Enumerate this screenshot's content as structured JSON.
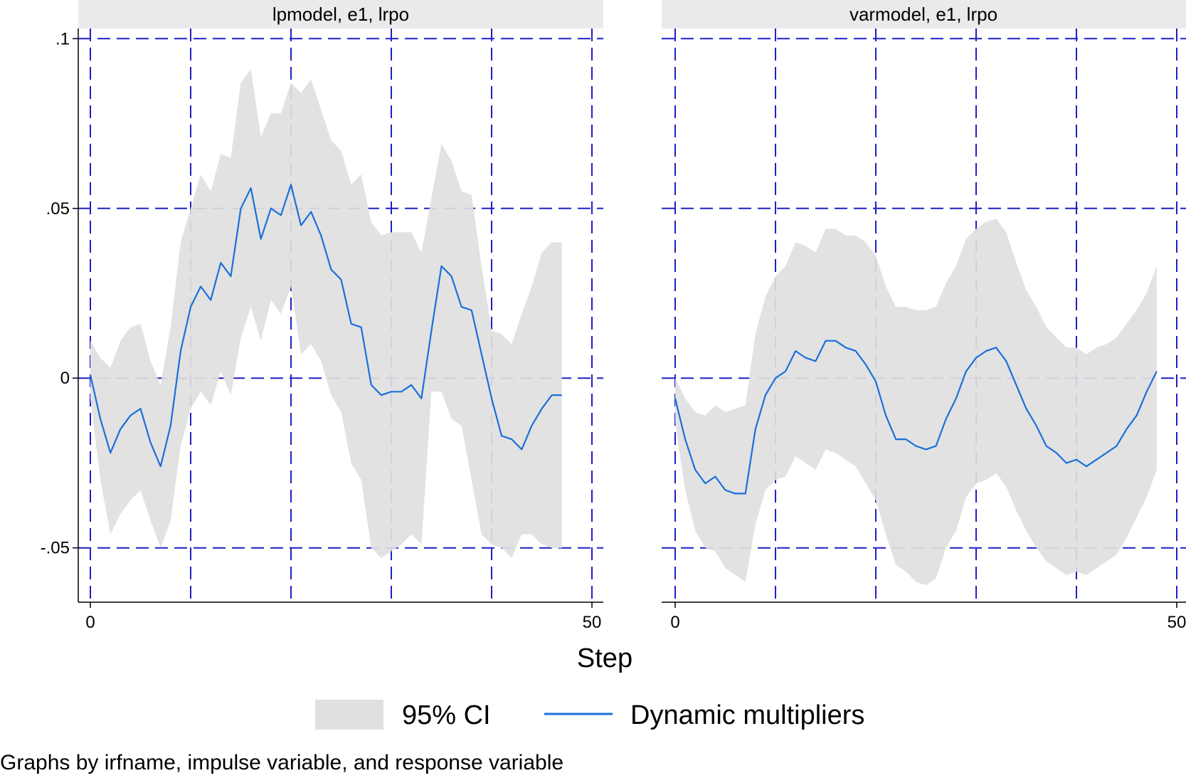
{
  "chart_data": [
    {
      "type": "line",
      "title": "lpmodel, e1, lrpo",
      "xlabel": "Step",
      "xlim": [
        0,
        50
      ],
      "ylim": [
        -0.066,
        0.103
      ],
      "xticks": [
        {
          "value": 0,
          "label": "0"
        },
        {
          "value": 50,
          "label": "50"
        }
      ],
      "yticks": [
        {
          "value": 0.1,
          "label": ".1"
        },
        {
          "value": 0.05,
          "label": ".05"
        },
        {
          "value": 0,
          "label": "0"
        },
        {
          "value": -0.05,
          "label": "-.05"
        }
      ],
      "grid_x": [
        0,
        10,
        20,
        30,
        40,
        50
      ],
      "grid_y": [
        -0.05,
        0,
        0.05,
        0.1
      ],
      "grid": true,
      "x": [
        0,
        1,
        2,
        3,
        4,
        5,
        6,
        7,
        8,
        9,
        10,
        11,
        12,
        13,
        14,
        15,
        16,
        17,
        18,
        19,
        20,
        21,
        22,
        23,
        24,
        25,
        26,
        27,
        28,
        29,
        30,
        31,
        32,
        33,
        34,
        35,
        36,
        37,
        38,
        39,
        40,
        41,
        42,
        43,
        44,
        45,
        46,
        47
      ],
      "series": [
        {
          "name": "95% CI",
          "kind": "band",
          "lower": [
            -0.006,
            -0.03,
            -0.046,
            -0.04,
            -0.036,
            -0.033,
            -0.042,
            -0.05,
            -0.042,
            -0.02,
            -0.009,
            -0.004,
            -0.008,
            0.002,
            -0.005,
            0.012,
            0.021,
            0.011,
            0.023,
            0.019,
            0.027,
            0.007,
            0.01,
            0.005,
            -0.005,
            -0.01,
            -0.025,
            -0.03,
            -0.05,
            -0.053,
            -0.051,
            -0.049,
            -0.046,
            -0.049,
            -0.004,
            -0.004,
            -0.012,
            -0.014,
            -0.03,
            -0.046,
            -0.049,
            -0.05,
            -0.053,
            -0.046,
            -0.046,
            -0.049,
            -0.05,
            -0.05
          ],
          "upper": [
            0.011,
            0.006,
            0.003,
            0.011,
            0.015,
            0.016,
            0.005,
            -0.002,
            0.015,
            0.04,
            0.05,
            0.06,
            0.055,
            0.066,
            0.065,
            0.087,
            0.091,
            0.071,
            0.078,
            0.078,
            0.087,
            0.084,
            0.088,
            0.079,
            0.07,
            0.067,
            0.057,
            0.06,
            0.046,
            0.042,
            0.043,
            0.043,
            0.043,
            0.037,
            0.053,
            0.069,
            0.064,
            0.055,
            0.054,
            0.033,
            0.014,
            0.013,
            0.01,
            0.019,
            0.027,
            0.037,
            0.04,
            0.04
          ]
        },
        {
          "name": "Dynamic multipliers",
          "kind": "line",
          "color": "#1a6fdb",
          "values": [
            0.001,
            -0.012,
            -0.022,
            -0.015,
            -0.011,
            -0.009,
            -0.019,
            -0.026,
            -0.014,
            0.008,
            0.021,
            0.027,
            0.023,
            0.034,
            0.03,
            0.05,
            0.056,
            0.041,
            0.05,
            0.048,
            0.057,
            0.045,
            0.049,
            0.042,
            0.032,
            0.029,
            0.016,
            0.015,
            -0.002,
            -0.005,
            -0.004,
            -0.004,
            -0.002,
            -0.006,
            0.014,
            0.033,
            0.03,
            0.021,
            0.02,
            0.007,
            -0.006,
            -0.017,
            -0.018,
            -0.021,
            -0.014,
            -0.009,
            -0.005,
            -0.005
          ]
        }
      ]
    },
    {
      "type": "line",
      "title": "varmodel, e1, lrpo",
      "xlabel": "Step",
      "xlim": [
        0,
        50
      ],
      "ylim": [
        -0.066,
        0.103
      ],
      "xticks": [
        {
          "value": 0,
          "label": "0"
        },
        {
          "value": 50,
          "label": "50"
        }
      ],
      "grid_x": [
        0,
        10,
        20,
        30,
        40,
        50
      ],
      "grid_y": [
        -0.05,
        0,
        0.05,
        0.1
      ],
      "grid": true,
      "x": [
        0,
        1,
        2,
        3,
        4,
        5,
        6,
        7,
        8,
        9,
        10,
        11,
        12,
        13,
        14,
        15,
        16,
        17,
        18,
        19,
        20,
        21,
        22,
        23,
        24,
        25,
        26,
        27,
        28,
        29,
        30,
        31,
        32,
        33,
        34,
        35,
        36,
        37,
        38,
        39,
        40,
        41,
        42,
        43,
        44,
        45,
        46,
        47,
        48
      ],
      "series": [
        {
          "name": "95% CI",
          "kind": "band",
          "lower": [
            -0.013,
            -0.033,
            -0.045,
            -0.05,
            -0.051,
            -0.056,
            -0.058,
            -0.06,
            -0.043,
            -0.033,
            -0.03,
            -0.029,
            -0.023,
            -0.025,
            -0.027,
            -0.021,
            -0.022,
            -0.024,
            -0.026,
            -0.031,
            -0.036,
            -0.046,
            -0.055,
            -0.057,
            -0.06,
            -0.061,
            -0.059,
            -0.05,
            -0.045,
            -0.035,
            -0.031,
            -0.03,
            -0.028,
            -0.032,
            -0.039,
            -0.045,
            -0.05,
            -0.054,
            -0.056,
            -0.058,
            -0.057,
            -0.058,
            -0.056,
            -0.054,
            -0.052,
            -0.047,
            -0.041,
            -0.035,
            -0.027
          ],
          "upper": [
            0.0,
            -0.006,
            -0.01,
            -0.011,
            -0.008,
            -0.01,
            -0.009,
            -0.008,
            0.013,
            0.024,
            0.03,
            0.033,
            0.04,
            0.039,
            0.037,
            0.044,
            0.044,
            0.042,
            0.042,
            0.04,
            0.036,
            0.027,
            0.021,
            0.021,
            0.02,
            0.02,
            0.021,
            0.028,
            0.033,
            0.041,
            0.044,
            0.046,
            0.047,
            0.043,
            0.034,
            0.026,
            0.021,
            0.015,
            0.012,
            0.009,
            0.009,
            0.007,
            0.009,
            0.01,
            0.012,
            0.016,
            0.02,
            0.025,
            0.033
          ]
        },
        {
          "name": "Dynamic multipliers",
          "kind": "line",
          "color": "#1a6fdb",
          "values": [
            -0.006,
            -0.018,
            -0.027,
            -0.031,
            -0.029,
            -0.033,
            -0.034,
            -0.034,
            -0.015,
            -0.005,
            0.0,
            0.002,
            0.008,
            0.006,
            0.005,
            0.011,
            0.011,
            0.009,
            0.008,
            0.004,
            -0.001,
            -0.011,
            -0.018,
            -0.018,
            -0.02,
            -0.021,
            -0.02,
            -0.012,
            -0.006,
            0.002,
            0.006,
            0.008,
            0.009,
            0.005,
            -0.002,
            -0.009,
            -0.014,
            -0.02,
            -0.022,
            -0.025,
            -0.024,
            -0.026,
            -0.024,
            -0.022,
            -0.02,
            -0.015,
            -0.011,
            -0.004,
            0.002
          ]
        }
      ]
    }
  ],
  "legend": {
    "items": [
      {
        "label": "95% CI",
        "kind": "band",
        "color": "#e0e0e0"
      },
      {
        "label": "Dynamic multipliers",
        "kind": "line",
        "color": "#1a6fdb"
      }
    ],
    "placement": "bottom"
  },
  "colors": {
    "band": "#e0e0e0",
    "line": "#1a6fdb",
    "grid": "#1f1fc8",
    "strip": "#eaeaea"
  },
  "note": "Graphs by irfname, impulse variable, and response variable"
}
